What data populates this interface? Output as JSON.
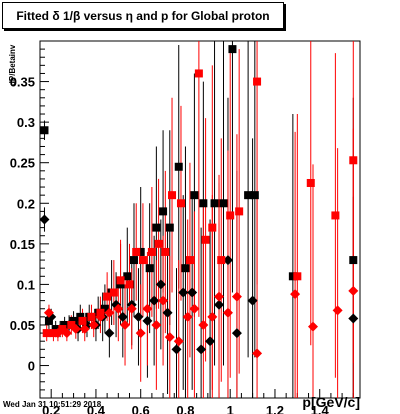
{
  "title": "Fitted δ 1/β versus η and p for Global proton",
  "ylabel": "dP/Betainv",
  "xlabel": "p[GeV/c]",
  "datestamp": "Wed Jan 31 10:51:29 2018",
  "chart_data": {
    "type": "scatter",
    "title": "Fitted δ 1/β versus η and p for Global proton",
    "xlabel": "p[GeV/c]",
    "ylabel": "dP/Betainv",
    "xlim": [
      0.15,
      1.58
    ],
    "ylim": [
      -0.04,
      0.4
    ],
    "x_ticks": [
      0.2,
      0.4,
      0.6,
      0.8,
      1,
      1.2,
      1.4
    ],
    "x_tick_labels": [
      "0.2",
      "0.4",
      "0.6",
      "0.8",
      "1",
      "1.2",
      "1.4"
    ],
    "y_ticks": [
      0,
      0.05,
      0.1,
      0.15,
      0.2,
      0.25,
      0.3,
      0.35
    ],
    "y_tick_labels": [
      "0",
      "0.05",
      "0.1",
      "0.15",
      "0.2",
      "0.25",
      "0.3",
      "0.35"
    ],
    "grid": false,
    "series": [
      {
        "marker": "square",
        "color": "#000000",
        "points": [
          {
            "x": 0.17,
            "y": 0.29,
            "e": 0.012
          },
          {
            "x": 0.19,
            "y": 0.055,
            "e": 0.01
          },
          {
            "x": 0.22,
            "y": 0.045,
            "e": 0.01
          },
          {
            "x": 0.26,
            "y": 0.05,
            "e": 0.01
          },
          {
            "x": 0.3,
            "y": 0.055,
            "e": 0.012
          },
          {
            "x": 0.33,
            "y": 0.06,
            "e": 0.015
          },
          {
            "x": 0.37,
            "y": 0.06,
            "e": 0.015
          },
          {
            "x": 0.41,
            "y": 0.065,
            "e": 0.02
          },
          {
            "x": 0.44,
            "y": 0.07,
            "e": 0.03
          },
          {
            "x": 0.47,
            "y": 0.09,
            "e": 0.04
          },
          {
            "x": 0.51,
            "y": 0.1,
            "e": 0.05
          },
          {
            "x": 0.54,
            "y": 0.11,
            "e": 0.06
          },
          {
            "x": 0.57,
            "y": 0.13,
            "e": 0.07
          },
          {
            "x": 0.6,
            "y": 0.14,
            "e": 0.08
          },
          {
            "x": 0.64,
            "y": 0.12,
            "e": 0.08
          },
          {
            "x": 0.67,
            "y": 0.17,
            "e": 0.1
          },
          {
            "x": 0.7,
            "y": 0.19,
            "e": 0.1
          },
          {
            "x": 0.73,
            "y": 0.17,
            "e": 0.12
          },
          {
            "x": 0.77,
            "y": 0.245,
            "e": 0.15
          },
          {
            "x": 0.8,
            "y": 0.12,
            "e": 0.15
          },
          {
            "x": 0.84,
            "y": 0.21,
            "e": 0.15
          },
          {
            "x": 0.88,
            "y": 0.2,
            "e": 0.15
          },
          {
            "x": 0.93,
            "y": 0.2,
            "e": 0.2
          },
          {
            "x": 0.97,
            "y": 0.2,
            "e": 0.2
          },
          {
            "x": 1.01,
            "y": 0.39,
            "e": 0.3
          },
          {
            "x": 1.08,
            "y": 0.21,
            "e": 0.2
          },
          {
            "x": 1.11,
            "y": 0.21,
            "e": 0.2
          },
          {
            "x": 1.28,
            "y": 0.11,
            "e": 0.2
          },
          {
            "x": 1.55,
            "y": 0.13,
            "e": 0.2
          }
        ]
      },
      {
        "marker": "diamond",
        "color": "#000000",
        "points": [
          {
            "x": 0.17,
            "y": 0.18,
            "e": 0.015
          },
          {
            "x": 0.2,
            "y": 0.06,
            "e": 0.01
          },
          {
            "x": 0.24,
            "y": 0.045,
            "e": 0.01
          },
          {
            "x": 0.28,
            "y": 0.05,
            "e": 0.012
          },
          {
            "x": 0.32,
            "y": 0.045,
            "e": 0.015
          },
          {
            "x": 0.36,
            "y": 0.05,
            "e": 0.015
          },
          {
            "x": 0.4,
            "y": 0.05,
            "e": 0.02
          },
          {
            "x": 0.43,
            "y": 0.06,
            "e": 0.03
          },
          {
            "x": 0.46,
            "y": 0.04,
            "e": 0.03
          },
          {
            "x": 0.49,
            "y": 0.075,
            "e": 0.04
          },
          {
            "x": 0.52,
            "y": 0.06,
            "e": 0.05
          },
          {
            "x": 0.56,
            "y": 0.075,
            "e": 0.05
          },
          {
            "x": 0.59,
            "y": 0.06,
            "e": 0.06
          },
          {
            "x": 0.63,
            "y": 0.055,
            "e": 0.07
          },
          {
            "x": 0.66,
            "y": 0.08,
            "e": 0.08
          },
          {
            "x": 0.69,
            "y": 0.1,
            "e": 0.08
          },
          {
            "x": 0.72,
            "y": 0.065,
            "e": 0.1
          },
          {
            "x": 0.76,
            "y": 0.02,
            "e": 0.1
          },
          {
            "x": 0.79,
            "y": 0.09,
            "e": 0.12
          },
          {
            "x": 0.83,
            "y": 0.09,
            "e": 0.12
          },
          {
            "x": 0.87,
            "y": 0.02,
            "e": 0.15
          },
          {
            "x": 0.91,
            "y": 0.03,
            "e": 0.15
          },
          {
            "x": 0.95,
            "y": 0.075,
            "e": 0.15
          },
          {
            "x": 0.99,
            "y": 0.13,
            "e": 0.2
          },
          {
            "x": 1.03,
            "y": 0.04,
            "e": 0.2
          },
          {
            "x": 1.1,
            "y": 0.08,
            "e": 0.2
          },
          {
            "x": 1.55,
            "y": 0.058,
            "e": 0.15
          }
        ]
      },
      {
        "marker": "square",
        "color": "#ff0000",
        "points": [
          {
            "x": 0.18,
            "y": 0.04,
            "e": 0.01
          },
          {
            "x": 0.21,
            "y": 0.04,
            "e": 0.01
          },
          {
            "x": 0.25,
            "y": 0.045,
            "e": 0.01
          },
          {
            "x": 0.29,
            "y": 0.05,
            "e": 0.012
          },
          {
            "x": 0.34,
            "y": 0.055,
            "e": 0.015
          },
          {
            "x": 0.38,
            "y": 0.06,
            "e": 0.015
          },
          {
            "x": 0.42,
            "y": 0.065,
            "e": 0.02
          },
          {
            "x": 0.45,
            "y": 0.085,
            "e": 0.03
          },
          {
            "x": 0.48,
            "y": 0.09,
            "e": 0.04
          },
          {
            "x": 0.51,
            "y": 0.105,
            "e": 0.05
          },
          {
            "x": 0.55,
            "y": 0.1,
            "e": 0.05
          },
          {
            "x": 0.58,
            "y": 0.14,
            "e": 0.06
          },
          {
            "x": 0.61,
            "y": 0.13,
            "e": 0.07
          },
          {
            "x": 0.65,
            "y": 0.14,
            "e": 0.08
          },
          {
            "x": 0.68,
            "y": 0.15,
            "e": 0.08
          },
          {
            "x": 0.71,
            "y": 0.14,
            "e": 0.1
          },
          {
            "x": 0.74,
            "y": 0.21,
            "e": 0.12
          },
          {
            "x": 0.78,
            "y": 0.2,
            "e": 0.12
          },
          {
            "x": 0.82,
            "y": 0.13,
            "e": 0.12
          },
          {
            "x": 0.86,
            "y": 0.36,
            "e": 0.3
          },
          {
            "x": 0.89,
            "y": 0.155,
            "e": 0.15
          },
          {
            "x": 0.92,
            "y": 0.17,
            "e": 0.2
          },
          {
            "x": 0.96,
            "y": 0.13,
            "e": 0.15
          },
          {
            "x": 1.0,
            "y": 0.185,
            "e": 0.2
          },
          {
            "x": 1.04,
            "y": 0.19,
            "e": 0.2
          },
          {
            "x": 1.12,
            "y": 0.35,
            "e": 0.25
          },
          {
            "x": 1.3,
            "y": 0.11,
            "e": 0.2
          },
          {
            "x": 1.36,
            "y": 0.225,
            "e": 0.2
          },
          {
            "x": 1.47,
            "y": 0.185,
            "e": 0.2
          },
          {
            "x": 1.55,
            "y": 0.253,
            "e": 0.25
          }
        ]
      },
      {
        "marker": "diamond",
        "color": "#ff0000",
        "points": [
          {
            "x": 0.19,
            "y": 0.065,
            "e": 0.01
          },
          {
            "x": 0.23,
            "y": 0.04,
            "e": 0.01
          },
          {
            "x": 0.27,
            "y": 0.04,
            "e": 0.01
          },
          {
            "x": 0.31,
            "y": 0.045,
            "e": 0.012
          },
          {
            "x": 0.35,
            "y": 0.045,
            "e": 0.015
          },
          {
            "x": 0.39,
            "y": 0.05,
            "e": 0.015
          },
          {
            "x": 0.42,
            "y": 0.06,
            "e": 0.02
          },
          {
            "x": 0.46,
            "y": 0.065,
            "e": 0.03
          },
          {
            "x": 0.5,
            "y": 0.07,
            "e": 0.04
          },
          {
            "x": 0.53,
            "y": 0.05,
            "e": 0.05
          },
          {
            "x": 0.56,
            "y": 0.07,
            "e": 0.05
          },
          {
            "x": 0.6,
            "y": 0.04,
            "e": 0.06
          },
          {
            "x": 0.63,
            "y": 0.07,
            "e": 0.07
          },
          {
            "x": 0.67,
            "y": 0.05,
            "e": 0.08
          },
          {
            "x": 0.7,
            "y": 0.08,
            "e": 0.08
          },
          {
            "x": 0.73,
            "y": 0.035,
            "e": 0.1
          },
          {
            "x": 0.77,
            "y": 0.03,
            "e": 0.1
          },
          {
            "x": 0.81,
            "y": 0.06,
            "e": 0.12
          },
          {
            "x": 0.84,
            "y": 0.07,
            "e": 0.12
          },
          {
            "x": 0.88,
            "y": 0.05,
            "e": 0.15
          },
          {
            "x": 0.92,
            "y": 0.06,
            "e": 0.15
          },
          {
            "x": 0.95,
            "y": 0.085,
            "e": 0.15
          },
          {
            "x": 0.99,
            "y": 0.065,
            "e": 0.2
          },
          {
            "x": 1.03,
            "y": 0.085,
            "e": 0.2
          },
          {
            "x": 1.12,
            "y": 0.015,
            "e": 0.2
          },
          {
            "x": 1.29,
            "y": 0.088,
            "e": 0.2
          },
          {
            "x": 1.37,
            "y": 0.048,
            "e": 0.2
          },
          {
            "x": 1.48,
            "y": 0.068,
            "e": 0.2
          },
          {
            "x": 1.55,
            "y": 0.092,
            "e": 0.2
          }
        ]
      }
    ]
  }
}
